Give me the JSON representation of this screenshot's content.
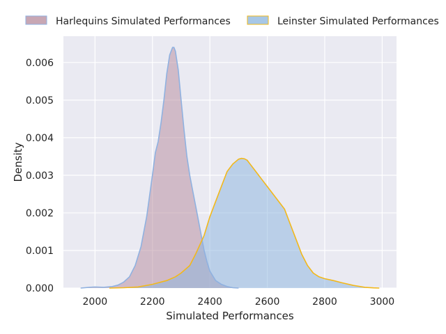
{
  "chart_data": {
    "type": "area",
    "xlabel": "Simulated Performances",
    "ylabel": "Density",
    "xlim": [
      1890,
      3050
    ],
    "ylim": [
      0,
      0.0067
    ],
    "xticks": [
      2000,
      2200,
      2400,
      2600,
      2800,
      3000
    ],
    "yticks": [
      0.0,
      0.001,
      0.002,
      0.003,
      0.004,
      0.005,
      0.006
    ],
    "ytick_labels": [
      "0.000",
      "0.001",
      "0.002",
      "0.003",
      "0.004",
      "0.005",
      "0.006"
    ],
    "grid": true,
    "legend_position": "top",
    "series": [
      {
        "name": "Harlequins Simulated Performances",
        "fill_color": "#b58a9b",
        "line_color": "#8fb1e0",
        "x": [
          1950,
          1980,
          2000,
          2030,
          2060,
          2080,
          2100,
          2120,
          2140,
          2160,
          2180,
          2200,
          2210,
          2220,
          2230,
          2240,
          2250,
          2260,
          2270,
          2275,
          2280,
          2290,
          2300,
          2310,
          2320,
          2330,
          2340,
          2350,
          2360,
          2370,
          2380,
          2390,
          2400,
          2420,
          2440,
          2460,
          2480,
          2500
        ],
        "y": [
          0.0,
          2e-05,
          3e-05,
          2e-05,
          4e-05,
          8e-05,
          0.00016,
          0.0003,
          0.0006,
          0.0011,
          0.0019,
          0.003,
          0.0036,
          0.0039,
          0.0044,
          0.005,
          0.0057,
          0.0062,
          0.0064,
          0.0064,
          0.0063,
          0.0058,
          0.005,
          0.0042,
          0.0035,
          0.003,
          0.0026,
          0.0022,
          0.0018,
          0.0014,
          0.001,
          0.0007,
          0.00045,
          0.0002,
          0.0001,
          4e-05,
          1e-05,
          0.0
        ]
      },
      {
        "name": "Leinster Simulated Performances",
        "fill_color": "#8ab4de",
        "line_color": "#f2b81a",
        "x": [
          2050,
          2100,
          2150,
          2200,
          2250,
          2280,
          2300,
          2330,
          2350,
          2380,
          2400,
          2420,
          2440,
          2460,
          2480,
          2500,
          2510,
          2520,
          2530,
          2540,
          2560,
          2580,
          2600,
          2620,
          2640,
          2660,
          2680,
          2700,
          2720,
          2740,
          2760,
          2780,
          2800,
          2830,
          2860,
          2900,
          2940,
          2970,
          2990
        ],
        "y": [
          0.0,
          1e-05,
          3e-05,
          0.0001,
          0.0002,
          0.0003,
          0.0004,
          0.0006,
          0.0009,
          0.0014,
          0.0019,
          0.0023,
          0.0027,
          0.0031,
          0.0033,
          0.00343,
          0.00345,
          0.00344,
          0.0034,
          0.0033,
          0.0031,
          0.0029,
          0.0027,
          0.0025,
          0.0023,
          0.0021,
          0.0017,
          0.0013,
          0.0009,
          0.0006,
          0.0004,
          0.0003,
          0.00025,
          0.0002,
          0.00014,
          7e-05,
          2e-05,
          5e-06,
          0.0
        ]
      }
    ]
  }
}
